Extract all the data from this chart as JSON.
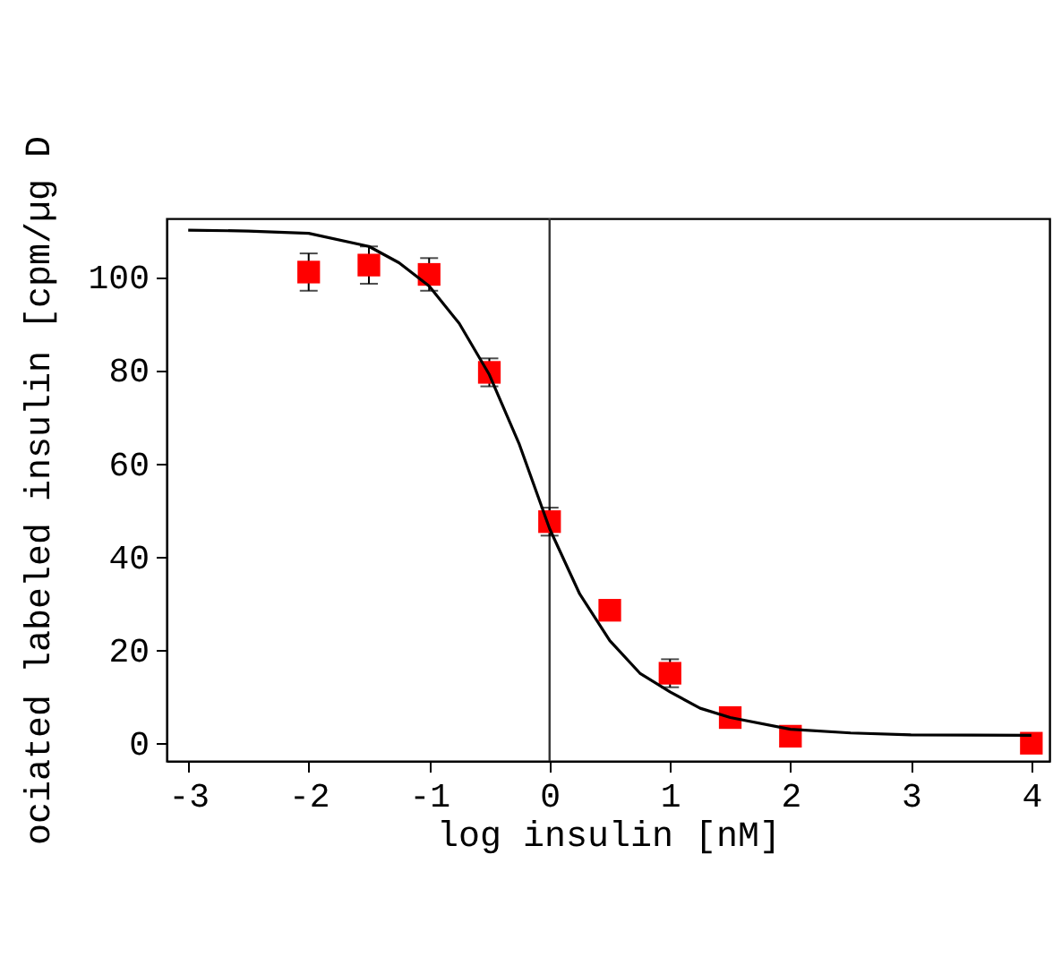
{
  "chart_data": {
    "type": "scatter",
    "xlabel": "log insulin [nM]",
    "ylabel": "ociated labeled insulin [cpm/µg D",
    "xlim": [
      -3.18,
      4.15
    ],
    "ylim": [
      -3.8,
      112.5
    ],
    "xticks": [
      -3,
      -2,
      -1,
      0,
      1,
      2,
      3,
      4
    ],
    "yticks": [
      0,
      20,
      40,
      60,
      80,
      100
    ],
    "grid": false,
    "marker": "square",
    "series": [
      {
        "color": "#ff0000",
        "x": [
          -2,
          -1.5,
          -1,
          -0.5,
          0,
          0.5,
          1,
          1.5,
          2,
          4
        ],
        "values": [
          101,
          102.5,
          100.5,
          79.5,
          47.5,
          28.5,
          15,
          5.5,
          1.5,
          0
        ],
        "errors": [
          4,
          4,
          3.5,
          3,
          3,
          null,
          3,
          null,
          null,
          null
        ]
      },
      {
        "type": "line",
        "color": "#000000",
        "marker": "none",
        "line_style": "solid",
        "x": [
          -3,
          -2.5,
          -2,
          -1.5,
          -1.25,
          -1,
          -0.75,
          -0.5,
          -0.25,
          0,
          0.25,
          0.5,
          0.75,
          1,
          1.25,
          1.5,
          2,
          2.5,
          3,
          4
        ],
        "values": [
          110,
          109.8,
          109.3,
          106.5,
          103,
          98,
          90,
          79,
          64,
          46,
          32,
          22,
          15,
          11,
          7.5,
          5.5,
          3,
          2.2,
          1.8,
          1.7
        ]
      }
    ],
    "ref_lines": [
      {
        "axis": "x",
        "value": 0,
        "color": "#333333"
      }
    ]
  }
}
